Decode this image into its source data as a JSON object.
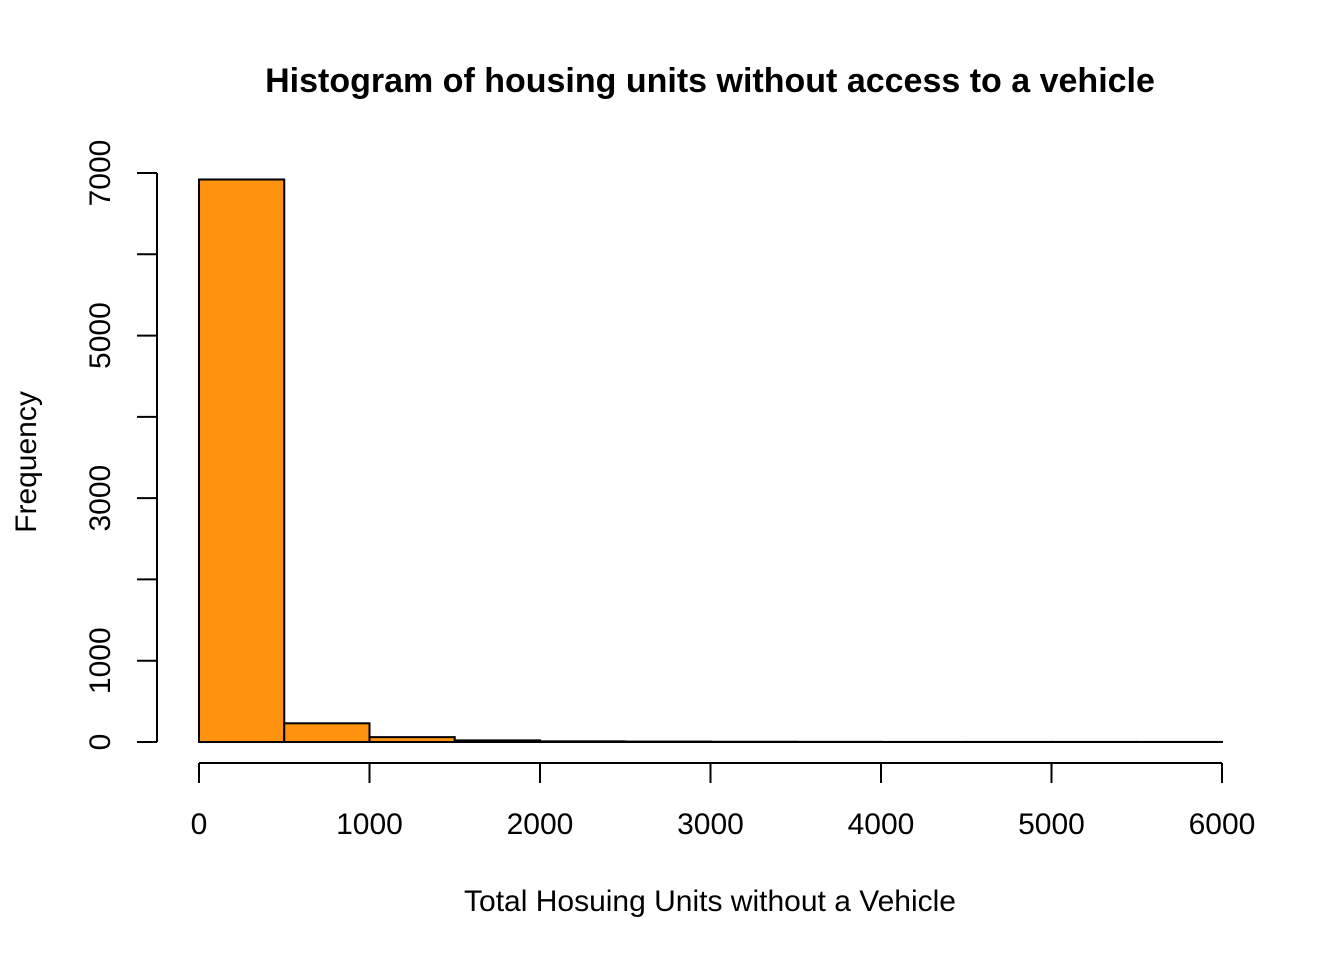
{
  "chart_data": {
    "type": "bar",
    "title": "Histogram of housing units without access to a vehicle",
    "xlabel": "Total Hosuing Units without a Vehicle",
    "ylabel": "Frequency",
    "bin_edges": [
      0,
      500,
      1000,
      1500,
      2000,
      2500,
      3000,
      3500,
      4000,
      4500,
      5000,
      5500,
      6000
    ],
    "values": [
      6920,
      230,
      60,
      20,
      8,
      5,
      3,
      2,
      1,
      1,
      1,
      1
    ],
    "xlim": [
      0,
      6000
    ],
    "ylim": [
      0,
      7000
    ],
    "x_ticks": [
      0,
      1000,
      2000,
      3000,
      4000,
      5000,
      6000
    ],
    "x_tick_labels": [
      "0",
      "1000",
      "2000",
      "3000",
      "4000",
      "5000",
      "6000"
    ],
    "y_ticks": [
      0,
      1000,
      2000,
      3000,
      4000,
      5000,
      6000,
      7000
    ],
    "y_tick_labels": [
      "0",
      "1000",
      "3000",
      "5000",
      "7000"
    ],
    "y_labeled_ticks": [
      0,
      1000,
      3000,
      5000,
      7000
    ],
    "bar_color": "#FF930F",
    "grid": false,
    "legend": "none"
  }
}
